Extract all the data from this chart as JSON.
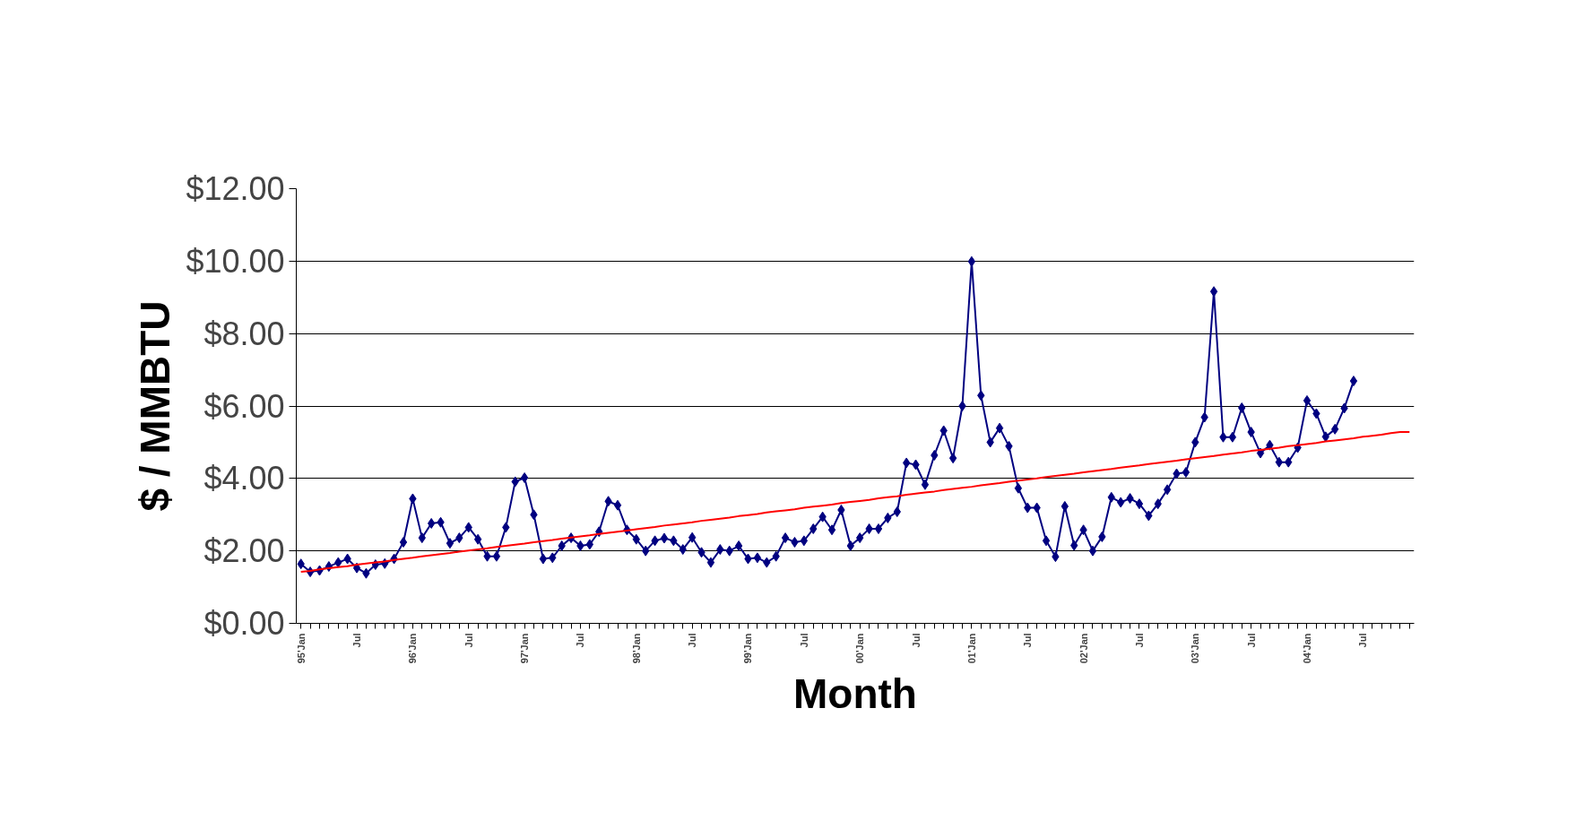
{
  "chart_data": {
    "type": "line",
    "xlabel": "Month",
    "ylabel": "$ / MMBTU",
    "categories": [
      "95'Jan",
      null,
      null,
      null,
      null,
      null,
      "Jul",
      null,
      null,
      null,
      null,
      null,
      "96'Jan",
      null,
      null,
      null,
      null,
      null,
      "Jul",
      null,
      null,
      null,
      null,
      null,
      "97'Jan",
      null,
      null,
      null,
      null,
      null,
      "Jul",
      null,
      null,
      null,
      null,
      null,
      "98'Jan",
      null,
      null,
      null,
      null,
      null,
      "Jul",
      null,
      null,
      null,
      null,
      null,
      "99'Jan",
      null,
      null,
      null,
      null,
      null,
      "Jul",
      null,
      null,
      null,
      null,
      null,
      "00'Jan",
      null,
      null,
      null,
      null,
      null,
      "Jul",
      null,
      null,
      null,
      null,
      null,
      "01'Jan",
      null,
      null,
      null,
      null,
      null,
      "Jul",
      null,
      null,
      null,
      null,
      null,
      "02'Jan",
      null,
      null,
      null,
      null,
      null,
      "Jul",
      null,
      null,
      null,
      null,
      null,
      "03'Jan",
      null,
      null,
      null,
      null,
      null,
      "Jul",
      null,
      null,
      null,
      null,
      null,
      "04'Jan",
      null,
      null,
      null,
      null,
      null,
      "Jul",
      null,
      null,
      null,
      null,
      null
    ],
    "ylim": [
      0,
      12
    ],
    "yticks": [
      {
        "value": 0,
        "label": "$0.00"
      },
      {
        "value": 2,
        "label": "$2.00"
      },
      {
        "value": 4,
        "label": "$4.00"
      },
      {
        "value": 6,
        "label": "$6.00"
      },
      {
        "value": 8,
        "label": "$8.00"
      },
      {
        "value": 10,
        "label": "$10.00"
      },
      {
        "value": 12,
        "label": "$12.00"
      }
    ],
    "grid": "y",
    "series": [
      {
        "color": "#000080",
        "marker": "diamond",
        "values": [
          1.64,
          1.42,
          1.46,
          1.57,
          1.68,
          1.78,
          1.53,
          1.38,
          1.62,
          1.65,
          1.78,
          2.24,
          3.44,
          2.36,
          2.76,
          2.79,
          2.21,
          2.36,
          2.65,
          2.32,
          1.85,
          1.85,
          2.65,
          3.91,
          4.02,
          3.0,
          1.78,
          1.81,
          2.14,
          2.36,
          2.14,
          2.18,
          2.53,
          3.37,
          3.26,
          2.58,
          2.32,
          2.0,
          2.28,
          2.35,
          2.28,
          2.04,
          2.37,
          1.96,
          1.68,
          2.04,
          2.0,
          2.14,
          1.78,
          1.81,
          1.68,
          1.85,
          2.36,
          2.24,
          2.28,
          2.61,
          2.94,
          2.58,
          3.13,
          2.14,
          2.36,
          2.61,
          2.61,
          2.91,
          3.08,
          4.43,
          4.38,
          3.83,
          4.64,
          5.32,
          4.56,
          6.0,
          9.99,
          6.29,
          5.0,
          5.39,
          4.89,
          3.73,
          3.19,
          3.19,
          2.28,
          1.84,
          3.23,
          2.15,
          2.58,
          2.0,
          2.39,
          3.48,
          3.34,
          3.45,
          3.3,
          2.97,
          3.3,
          3.69,
          4.13,
          4.17,
          5.0,
          5.69,
          9.16,
          5.14,
          5.14,
          5.95,
          5.28,
          4.7,
          4.92,
          4.45,
          4.45,
          4.85,
          6.15,
          5.79,
          5.15,
          5.36,
          5.94,
          6.69,
          null,
          null,
          null,
          null,
          null,
          null
        ]
      },
      {
        "type": "line",
        "color": "#ff0000",
        "marker": "none",
        "values": [
          1.42,
          1.45,
          1.49,
          1.52,
          1.55,
          1.58,
          1.62,
          1.65,
          1.68,
          1.71,
          1.75,
          1.78,
          1.81,
          1.85,
          1.88,
          1.91,
          1.94,
          1.98,
          2.01,
          2.04,
          2.07,
          2.11,
          2.14,
          2.17,
          2.2,
          2.24,
          2.27,
          2.3,
          2.34,
          2.37,
          2.4,
          2.43,
          2.47,
          2.5,
          2.53,
          2.56,
          2.6,
          2.63,
          2.66,
          2.7,
          2.73,
          2.76,
          2.79,
          2.83,
          2.86,
          2.89,
          2.92,
          2.96,
          2.99,
          3.02,
          3.06,
          3.09,
          3.12,
          3.15,
          3.19,
          3.22,
          3.25,
          3.28,
          3.32,
          3.35,
          3.38,
          3.41,
          3.45,
          3.48,
          3.51,
          3.55,
          3.58,
          3.61,
          3.64,
          3.68,
          3.71,
          3.74,
          3.77,
          3.81,
          3.84,
          3.87,
          3.91,
          3.94,
          3.97,
          4.0,
          4.04,
          4.07,
          4.1,
          4.13,
          4.17,
          4.2,
          4.23,
          4.26,
          4.3,
          4.33,
          4.36,
          4.4,
          4.43,
          4.46,
          4.49,
          4.53,
          4.56,
          4.59,
          4.62,
          4.66,
          4.69,
          4.72,
          4.76,
          4.79,
          4.82,
          4.85,
          4.89,
          4.92,
          4.95,
          4.98,
          5.02,
          5.05,
          5.08,
          5.11,
          5.15,
          5.18,
          5.21,
          5.25,
          5.28,
          5.28
        ]
      }
    ]
  }
}
